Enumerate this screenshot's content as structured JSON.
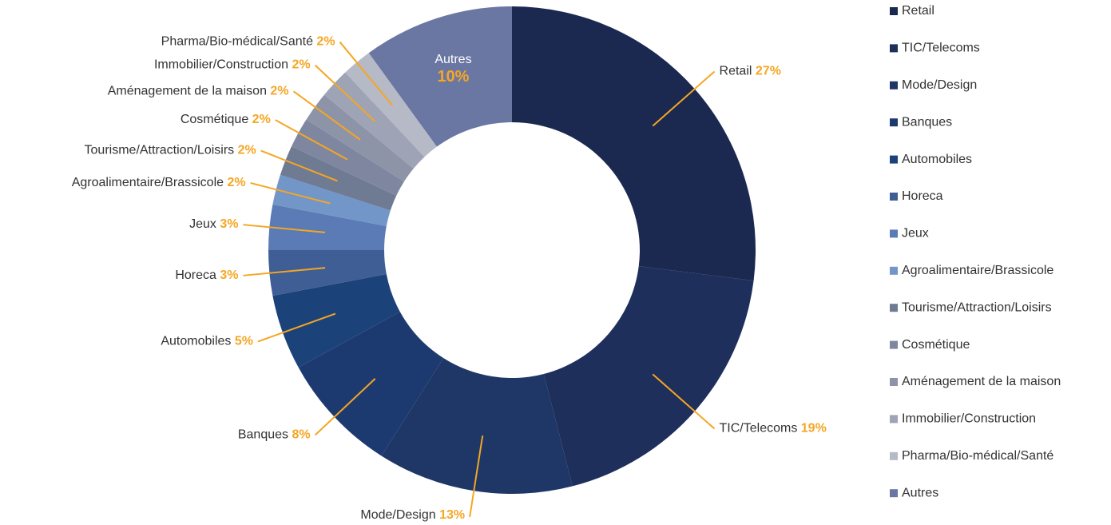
{
  "chart_data": {
    "type": "donut",
    "categories": [
      "Retail",
      "TIC/Telecoms",
      "Mode/Design",
      "Banques",
      "Automobiles",
      "Horeca",
      "Jeux",
      "Agroalimentaire/Brassicole",
      "Tourisme/Attraction/Loisirs",
      "Cosmétique",
      "Aménagement de la maison",
      "Immobilier/Construction",
      "Pharma/Bio-médical/Santé",
      "Autres"
    ],
    "values": [
      27,
      19,
      13,
      8,
      5,
      3,
      3,
      2,
      2,
      2,
      2,
      2,
      2,
      10
    ],
    "value_labels": [
      "27%",
      "19%",
      "13%",
      "8%",
      "5%",
      "3%",
      "3%",
      "2%",
      "2%",
      "2%",
      "2%",
      "2%",
      "2%",
      "10%"
    ],
    "colors": [
      "#1b2951",
      "#1e2f5c",
      "#1f3766",
      "#1d3a70",
      "#1c427a",
      "#3e5e95",
      "#5a7bb5",
      "#7296c8",
      "#6f7a93",
      "#7e879f",
      "#8d94a8",
      "#9ea4b5",
      "#b6bac6",
      "#6a77a3"
    ],
    "legend": "right"
  }
}
